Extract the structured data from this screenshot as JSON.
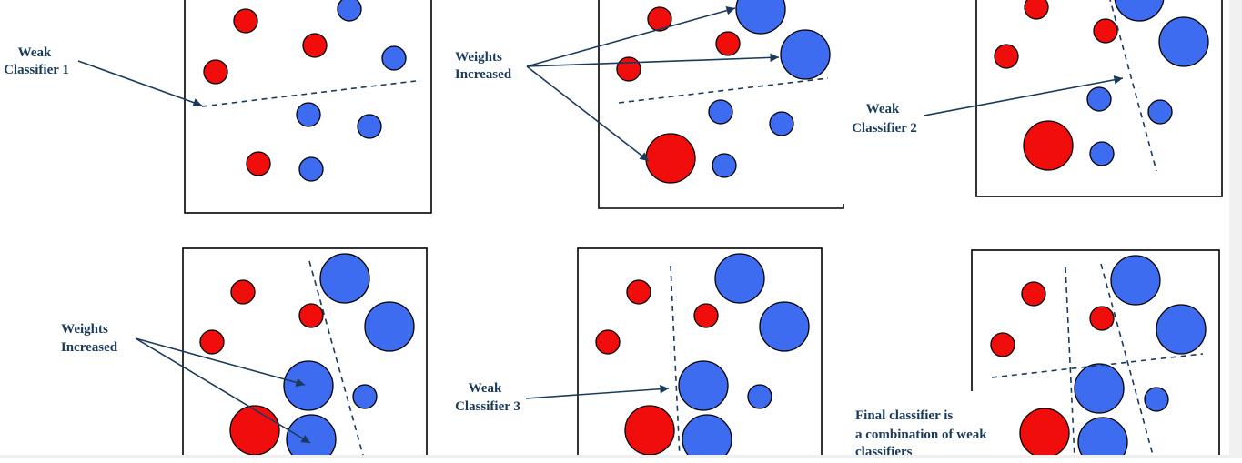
{
  "labels": {
    "weak_classifier_1_line1": "Weak",
    "weak_classifier_1_line2": "Classifier 1",
    "weights_increased_1_line1": "Weights",
    "weights_increased_1_line2": "Increased",
    "weak_classifier_2_line1": "Weak",
    "weak_classifier_2_line2": "Classifier 2",
    "weights_increased_2_line1": "Weights",
    "weights_increased_2_line2": "Increased",
    "weak_classifier_3_line1": "Weak",
    "weak_classifier_3_line2": "Classifier 3",
    "final_line1": "Final classifier is",
    "final_line2": "a combination of weak",
    "final_line3": "classifiers"
  },
  "colors": {
    "positive_class": "#f20d0d",
    "negative_class": "#3d6cf0",
    "annotation": "#1a3a5c"
  }
}
